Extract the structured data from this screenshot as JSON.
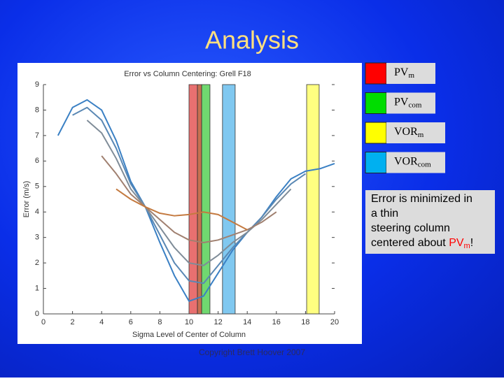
{
  "slide": {
    "title": "Analysis",
    "legend": [
      {
        "label": "PV",
        "sub": "m",
        "color": "#ff0000"
      },
      {
        "label": "PV",
        "sub": "com",
        "color": "#00dd00"
      },
      {
        "label": "VOR",
        "sub": "m",
        "color": "#ffff00"
      },
      {
        "label": "VOR",
        "sub": "com",
        "color": "#00b0f0"
      }
    ],
    "note": {
      "text": "Error is minimized in a thin steering column centered about ",
      "highlight": "PV",
      "highlight_sub": "m",
      "end": "!"
    },
    "copyright": "Copyright Brett Hoover 2007"
  },
  "chart_data": {
    "type": "line",
    "title": "Error vs Column Centering: Grell F18",
    "x_label": "Sigma Level of Center of Column",
    "y_label": "Error (m/s)",
    "x": [
      1,
      2,
      3,
      4,
      5,
      6,
      7,
      8,
      9,
      10,
      11,
      12,
      13,
      14,
      15,
      16,
      17,
      18,
      19,
      20
    ],
    "series": [
      {
        "color": "#3a80c4",
        "values": [
          7.0,
          8.1,
          8.4,
          8.0,
          6.8,
          5.2,
          4.2,
          2.8,
          1.5,
          0.5,
          0.7,
          1.6,
          2.5,
          3.2,
          3.8,
          4.6,
          5.3,
          5.6,
          5.7,
          5.9
        ]
      },
      {
        "color": "#5a88b4",
        "values": [
          null,
          7.8,
          8.1,
          7.6,
          6.5,
          5.1,
          4.2,
          3.1,
          2.0,
          1.3,
          1.2,
          1.9,
          2.6,
          3.2,
          3.8,
          4.5,
          5.1,
          5.5,
          null,
          null
        ]
      },
      {
        "color": "#7f8c98",
        "values": [
          null,
          null,
          7.6,
          7.1,
          6.1,
          4.9,
          4.2,
          3.4,
          2.6,
          2.0,
          1.9,
          2.3,
          2.8,
          3.2,
          3.7,
          4.3,
          4.9,
          null,
          null,
          null
        ]
      },
      {
        "color": "#a08070",
        "values": [
          null,
          null,
          null,
          6.2,
          5.5,
          4.7,
          4.2,
          3.7,
          3.2,
          2.9,
          2.8,
          2.9,
          3.1,
          3.3,
          3.6,
          4.0,
          null,
          null,
          null,
          null
        ]
      },
      {
        "color": "#c47a40",
        "values": [
          null,
          null,
          null,
          null,
          4.9,
          4.5,
          4.2,
          3.95,
          3.85,
          3.9,
          4.0,
          3.9,
          3.6,
          3.3,
          null,
          null,
          null,
          null,
          null,
          null
        ]
      }
    ],
    "bands": [
      {
        "x0": 10.0,
        "x1": 10.58,
        "color": "#e87070"
      },
      {
        "x0": 10.58,
        "x1": 10.87,
        "color": "#c87050"
      },
      {
        "x0": 10.87,
        "x1": 11.44,
        "color": "#70d870"
      },
      {
        "x0": 12.3,
        "x1": 13.17,
        "color": "#80c8f0"
      },
      {
        "x0": 18.08,
        "x1": 18.94,
        "color": "#ffff80"
      }
    ],
    "xlim": [
      0,
      20
    ],
    "ylim": [
      0,
      9
    ],
    "xticks": [
      0,
      2,
      4,
      6,
      8,
      10,
      12,
      14,
      16,
      18,
      20
    ],
    "yticks": [
      0,
      1,
      2,
      3,
      4,
      5,
      6,
      7,
      8,
      9
    ]
  }
}
